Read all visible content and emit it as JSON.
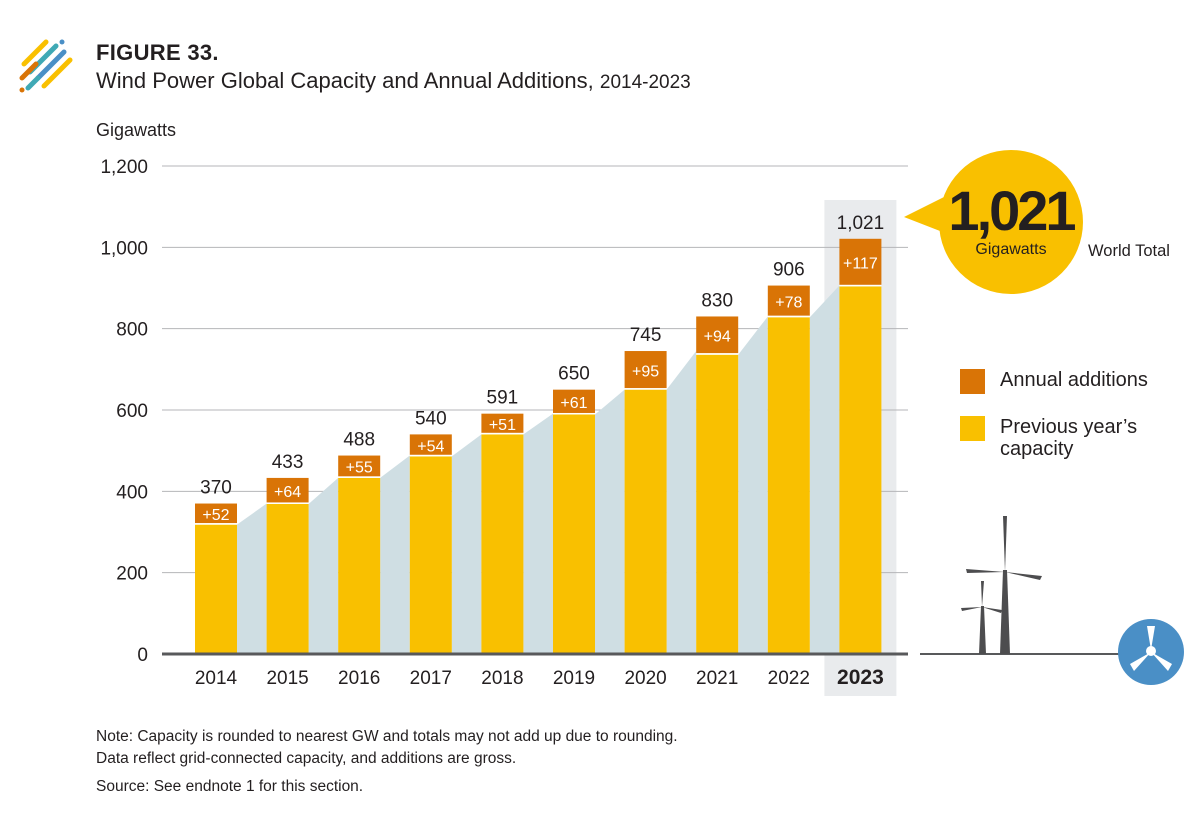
{
  "header": {
    "figure_label": "FIGURE 33.",
    "title": "Wind Power Global Capacity and Annual Additions,",
    "title_years": "2014-2023"
  },
  "callout": {
    "value": "1,021",
    "unit": "Gigawatts",
    "caption": "World Total"
  },
  "legend": {
    "additions": "Annual additions",
    "previous": "Previous year’s capacity"
  },
  "colors": {
    "previous_capacity": "#f9c000",
    "annual_additions": "#d97406",
    "trend_area": "#cfdee3",
    "highlight_band": "#e9ebed",
    "axis": "#58595b",
    "turbine": "#4d4d4f",
    "badge": "#4a8fc6"
  },
  "icons": {
    "logo": "figure-logo-icon",
    "turbine": "wind-turbine-icon",
    "badge": "wind-turbine-badge-icon"
  },
  "notes": {
    "line1": "Note: Capacity is rounded to nearest GW and totals may not add up due to rounding.",
    "line2": "Data reflect grid-connected capacity, and additions are gross.",
    "source": "Source: See endnote 1 for this section."
  },
  "chart_data": {
    "type": "bar",
    "stacked": true,
    "ylabel": "Gigawatts",
    "ylim": [
      0,
      1200
    ],
    "yticks": [
      0,
      200,
      400,
      600,
      800,
      1000,
      1200
    ],
    "ytick_labels": [
      "0",
      "200",
      "400",
      "600",
      "800",
      "1,000",
      "1,200"
    ],
    "categories": [
      "2014",
      "2015",
      "2016",
      "2017",
      "2018",
      "2019",
      "2020",
      "2021",
      "2022",
      "2023"
    ],
    "highlight_category": "2023",
    "totals": [
      370,
      433,
      488,
      540,
      591,
      650,
      745,
      830,
      906,
      1021
    ],
    "total_labels": [
      "370",
      "433",
      "488",
      "540",
      "591",
      "650",
      "745",
      "830",
      "906",
      "1,021"
    ],
    "series": [
      {
        "name": "Previous year’s capacity",
        "values": [
          318,
          369,
          433,
          486,
          540,
          589,
          650,
          736,
          828,
          904
        ]
      },
      {
        "name": "Annual additions",
        "values": [
          52,
          64,
          55,
          54,
          51,
          61,
          95,
          94,
          78,
          117
        ]
      }
    ],
    "addition_labels": [
      "+52",
      "+64",
      "+55",
      "+54",
      "+51",
      "+61",
      "+95",
      "+94",
      "+78",
      "+117"
    ],
    "grid": true,
    "legend_position": "right"
  }
}
